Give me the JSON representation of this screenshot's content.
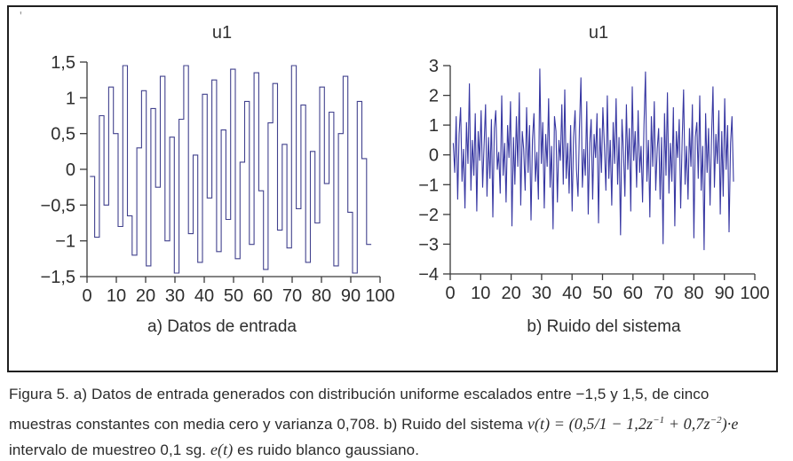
{
  "page": {
    "stray_mark": "'"
  },
  "chart_data": [
    {
      "type": "line",
      "mode": "step",
      "title": "u1",
      "caption": "a) Datos de entrada",
      "xlim": [
        0,
        100
      ],
      "ylim": [
        -1.5,
        1.5
      ],
      "xticks": [
        0,
        10,
        20,
        30,
        40,
        50,
        60,
        70,
        80,
        90,
        100
      ],
      "xtick_labels": [
        "0",
        "10",
        "20",
        "30",
        "40",
        "50",
        "60",
        "70",
        "80",
        "90",
        "100"
      ],
      "yticks": [
        1.5,
        1,
        0.5,
        0,
        -0.5,
        -1,
        -1.5
      ],
      "ytick_labels": [
        "1,5",
        "1",
        "0,5",
        "0",
        "−0,5",
        "−1",
        "−1,5"
      ],
      "x_start": 1,
      "x_end": 97,
      "color": "#42428e",
      "grid": false,
      "values": [
        -0.1,
        -0.95,
        0.75,
        -0.5,
        1.15,
        0.5,
        -0.8,
        1.45,
        -0.65,
        -1.2,
        0.3,
        1.1,
        -1.35,
        0.85,
        -0.25,
        1.3,
        -1.0,
        0.45,
        -1.45,
        0.7,
        1.45,
        -0.9,
        0.2,
        -1.3,
        1.05,
        -0.4,
        1.25,
        -1.15,
        0.55,
        -0.7,
        1.4,
        -1.25,
        0.1,
        0.95,
        -1.05,
        1.35,
        -0.3,
        -1.4,
        0.65,
        1.2,
        -0.85,
        0.35,
        -1.1,
        1.45,
        -0.55,
        0.9,
        -1.3,
        0.25,
        -0.75,
        1.15,
        -0.2,
        0.8,
        -1.35,
        0.5,
        1.3,
        -0.6,
        -1.45,
        0.95,
        0.15,
        -1.05
      ]
    },
    {
      "type": "line",
      "mode": "line",
      "title": "u1",
      "caption": "b) Ruido del sistema",
      "xlim": [
        0,
        100
      ],
      "ylim": [
        -4,
        3
      ],
      "xticks": [
        0,
        10,
        20,
        30,
        40,
        50,
        60,
        70,
        80,
        90,
        100
      ],
      "xtick_labels": [
        "0",
        "10",
        "20",
        "30",
        "40",
        "50",
        "60",
        "70",
        "80",
        "90",
        "100"
      ],
      "yticks": [
        3,
        2,
        1,
        0,
        -1,
        -2,
        -3,
        -4
      ],
      "ytick_labels": [
        "3",
        "2",
        "1",
        "0",
        "−1",
        "−2",
        "−3",
        "−4"
      ],
      "x_start": 1,
      "x_end": 93,
      "color": "#3737a2",
      "grid": false,
      "values": [
        0.4,
        -0.6,
        1.3,
        -1.5,
        0.7,
        1.6,
        -0.9,
        0.2,
        -1.8,
        1.1,
        -0.3,
        2.4,
        -1.2,
        0.5,
        -0.7,
        1.4,
        -1.9,
        0.8,
        -0.2,
        1.5,
        -1.1,
        0.3,
        1.7,
        -1.4,
        0.6,
        -0.8,
        1.2,
        -2.1,
        0.9,
        1.5,
        -0.5,
        0.1,
        -1.3,
        2.0,
        -0.7,
        0.4,
        -1.6,
        1.0,
        -0.1,
        1.8,
        -2.4,
        0.6,
        -1.0,
        1.3,
        -0.4,
        2.1,
        -1.7,
        0.8,
        0.2,
        -1.2,
        1.6,
        -0.6,
        1.0,
        -2.2,
        0.5,
        1.4,
        -0.9,
        0.1,
        -1.5,
        2.9,
        -0.3,
        1.1,
        -1.8,
        0.7,
        -0.4,
        1.9,
        -1.1,
        0.3,
        -2.5,
        1.3,
        0.8,
        -1.6,
        0.5,
        -0.2,
        1.7,
        -1.0,
        2.2,
        -0.8,
        0.4,
        -1.3,
        1.0,
        -1.9,
        0.6,
        1.5,
        -0.5,
        -1.4,
        0.9,
        2.6,
        -1.1,
        0.2,
        -0.7,
        1.8,
        -2.0,
        0.4,
        1.2,
        -1.5,
        0.7,
        -0.1,
        1.4,
        -2.3,
        0.9,
        -0.6,
        1.6,
        0.3,
        -1.2,
        2.0,
        -0.8,
        0.5,
        -1.7,
        1.1,
        -0.3,
        1.9,
        -1.0,
        0.6,
        -2.7,
        1.2,
        0.1,
        -1.4,
        1.7,
        -0.5,
        0.9,
        -1.9,
        2.3,
        -0.2,
        0.8,
        -1.1,
        1.5,
        -0.6,
        0.3,
        -1.6,
        1.0,
        2.8,
        -0.9,
        0.5,
        -2.1,
        1.3,
        -0.4,
        1.8,
        -1.2,
        0.2,
        0.9,
        -1.5,
        0.6,
        -3.0,
        1.4,
        -0.7,
        2.1,
        -1.3,
        0.4,
        -0.9,
        1.6,
        -2.4,
        0.8,
        -0.1,
        1.2,
        -1.8,
        0.5,
        2.2,
        -1.0,
        0.3,
        -1.5,
        0.9,
        -0.4,
        1.7,
        -2.8,
        0.6,
        1.1,
        -0.8,
        2.0,
        -1.2,
        0.3,
        -3.2,
        1.4,
        -0.6,
        0.9,
        -1.7,
        0.5,
        2.3,
        -1.1,
        0.7,
        -0.3,
        1.5,
        -2.0,
        0.8,
        -1.4,
        1.9,
        -0.5,
        1.0,
        -2.6,
        0.4,
        1.3,
        -0.9
      ]
    }
  ],
  "figure_caption": {
    "line1": "Figura 5. a) Datos de entrada generados con distribución uniforme escalados entre −1,5 y 1,5, de cinco",
    "line2_pre": "muestras constantes con media cero y varianza 0,708. b) Ruido del sistema ",
    "formula": {
      "pre": "v(t) = (0,5/1 − 1,2z",
      "sup1": "−1",
      "mid": " + 0,7z",
      "sup2": "−2",
      "post": ")·e"
    },
    "line3_pre": "intervalo de muestreo 0,1 sg. ",
    "line3_math": "e(t)",
    "line3_post": " es ruido blanco gaussiano."
  }
}
